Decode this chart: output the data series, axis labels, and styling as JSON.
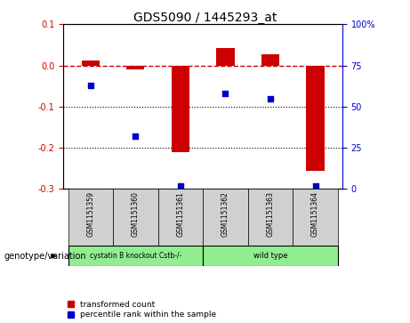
{
  "title": "GDS5090 / 1445293_at",
  "samples": [
    "GSM1151359",
    "GSM1151360",
    "GSM1151361",
    "GSM1151362",
    "GSM1151363",
    "GSM1151364"
  ],
  "red_values": [
    0.012,
    -0.01,
    -0.21,
    0.042,
    0.028,
    -0.255
  ],
  "blue_values_pct": [
    63,
    32,
    2,
    58,
    55,
    2
  ],
  "ylim_left": [
    -0.3,
    0.1
  ],
  "ylim_right": [
    0,
    100
  ],
  "yticks_left": [
    -0.3,
    -0.2,
    -0.1,
    0.0,
    0.1
  ],
  "yticks_right": [
    0,
    25,
    50,
    75,
    100
  ],
  "group1_label": "cystatin B knockout Cstb-/-",
  "group2_label": "wild type",
  "group1_indices": [
    0,
    1,
    2
  ],
  "group2_indices": [
    3,
    4,
    5
  ],
  "group1_color": "#90EE90",
  "group2_color": "#90EE90",
  "genotype_label": "genotype/variation",
  "legend1_label": "transformed count",
  "legend2_label": "percentile rank within the sample",
  "red_color": "#CC0000",
  "blue_color": "#0000CC",
  "bar_width": 0.4,
  "zero_line_color": "#CC0000",
  "grid_color": "black",
  "sample_box_color": "#d0d0d0"
}
